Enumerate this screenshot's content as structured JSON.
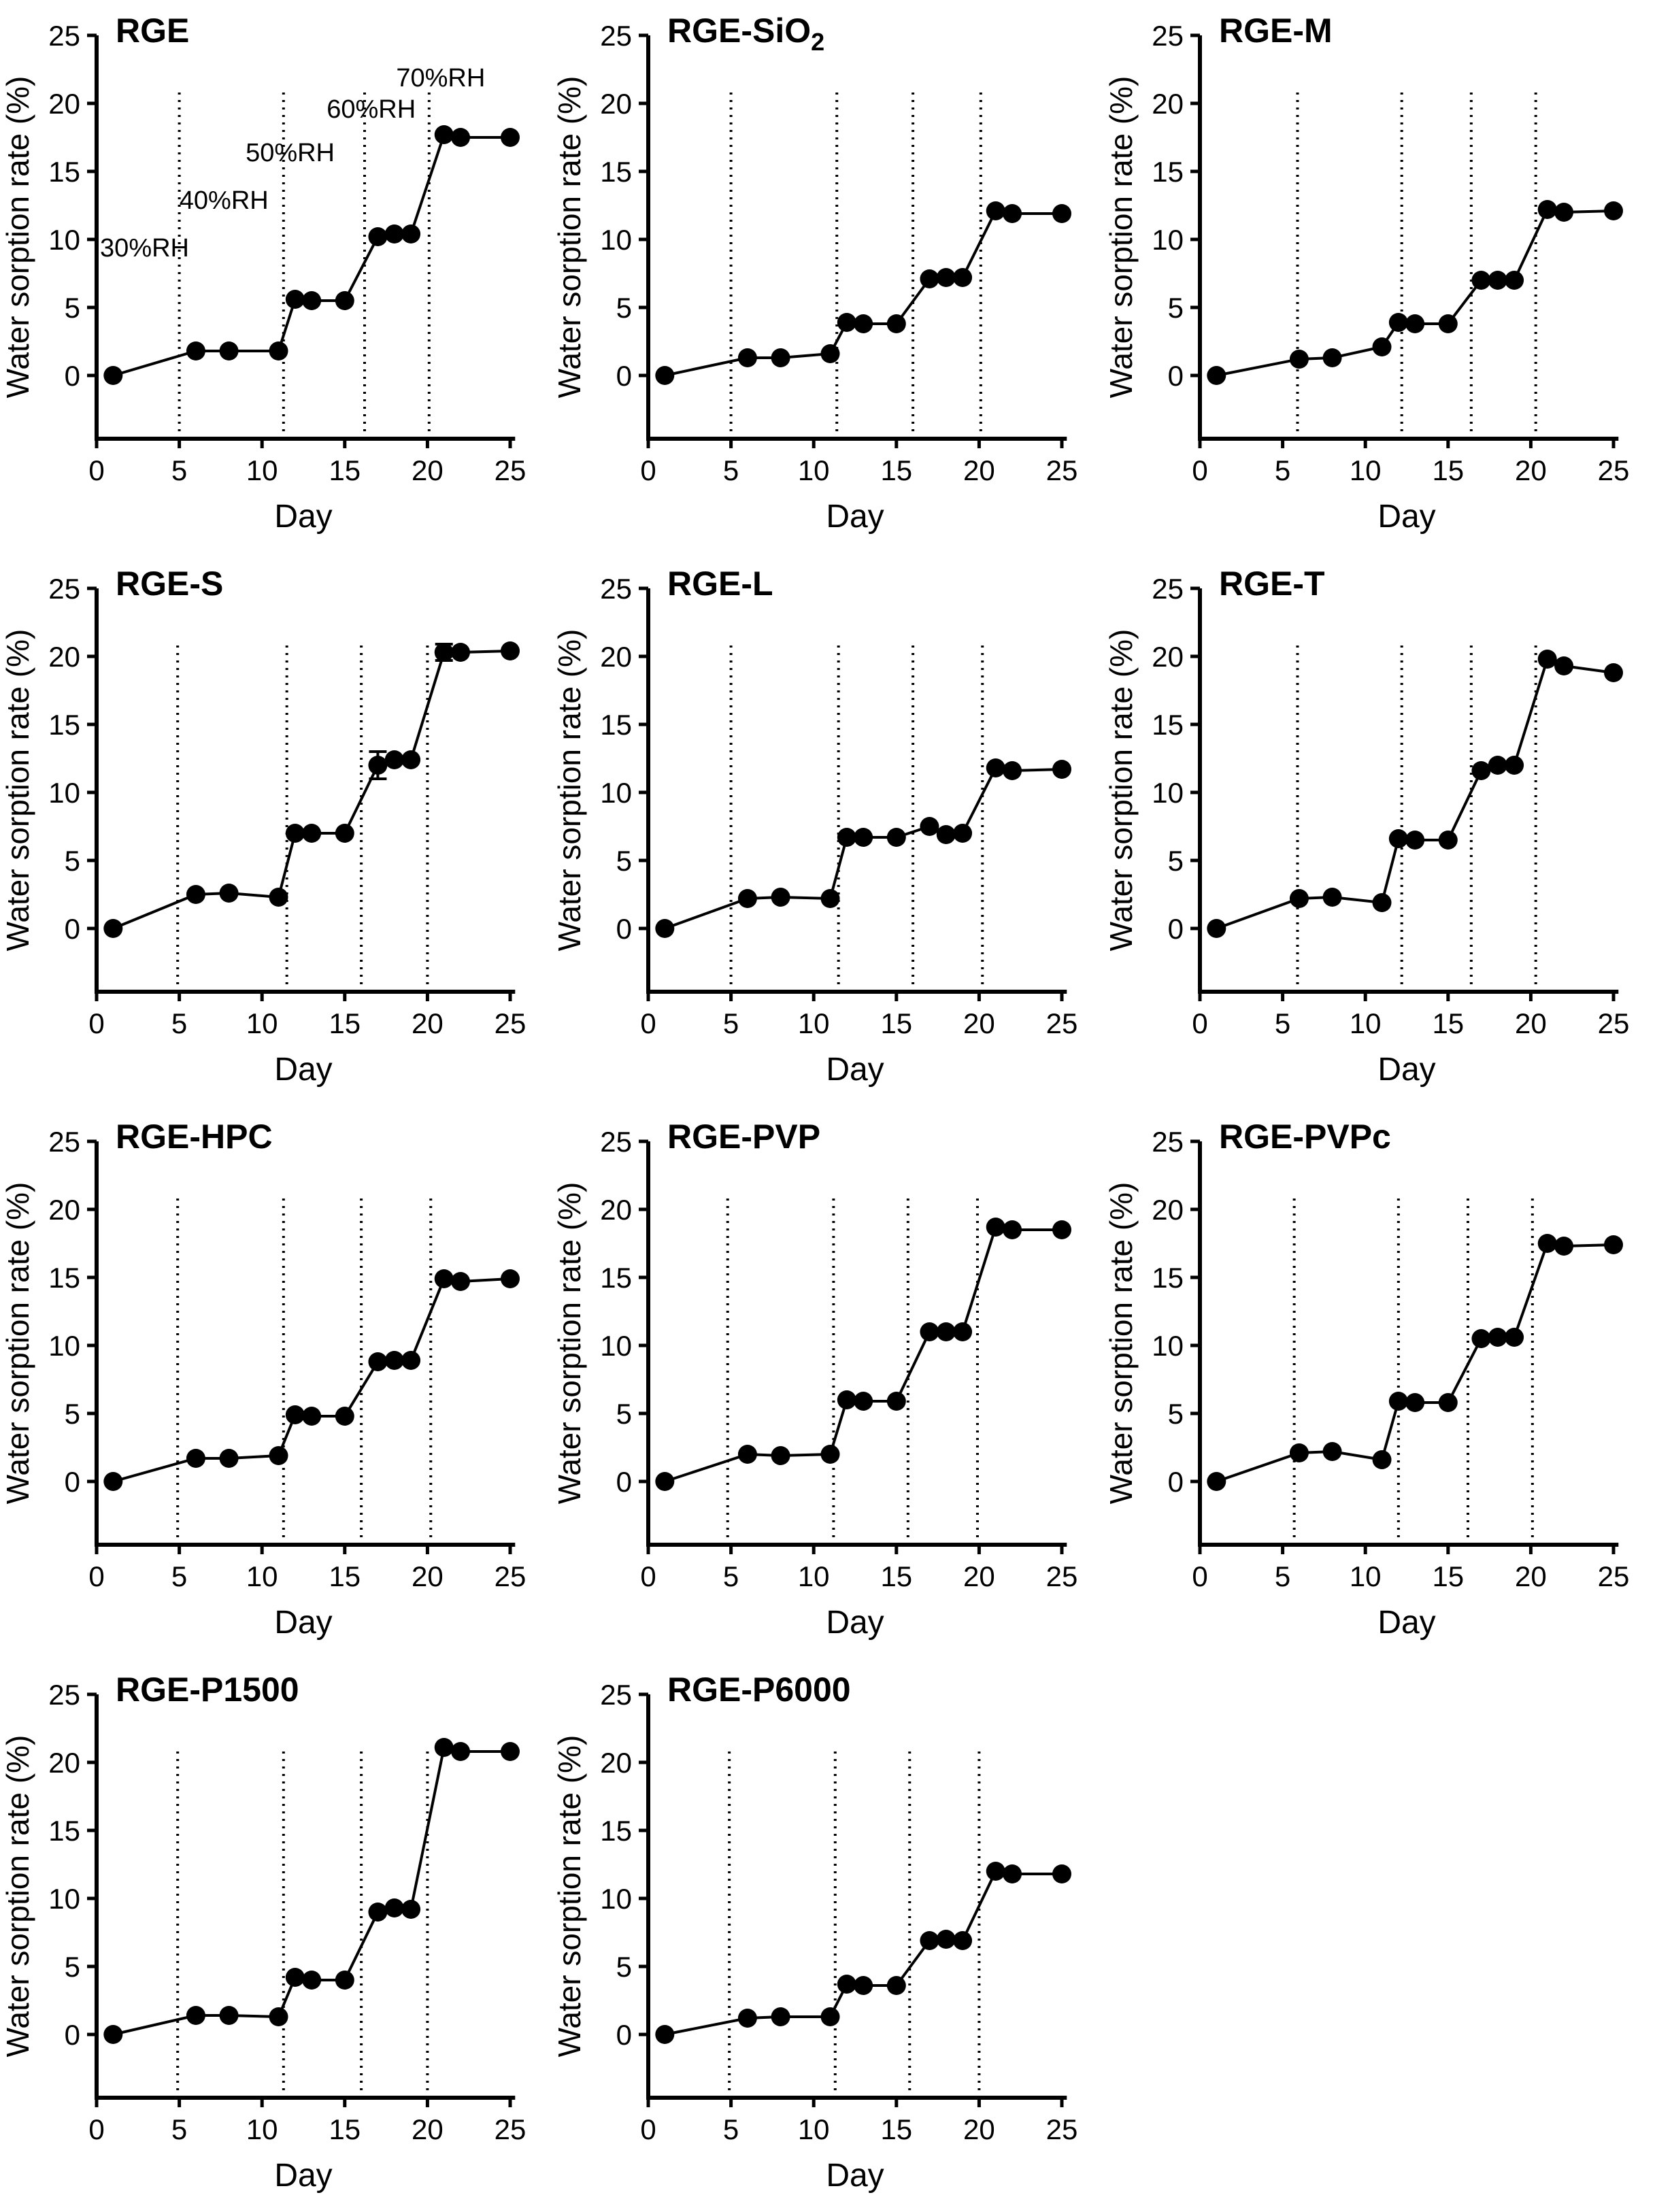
{
  "figure": {
    "background": "#ffffff",
    "ink_color": "#000000",
    "xlabel": "Day",
    "ylabel": "Water sorption rate (%)",
    "x_ticks": [
      0,
      5,
      10,
      15,
      20,
      25
    ],
    "y_ticks": [
      0,
      5,
      10,
      15,
      20,
      25
    ],
    "xlim": [
      0,
      25
    ],
    "ylim": [
      0,
      25
    ],
    "grid": "off",
    "legend": "none",
    "marker": "filled-circle",
    "rh_boundary_style": "vertical-dotted-line"
  },
  "chart_data": [
    {
      "type": "line",
      "title": "RGE",
      "title_sub": "",
      "xlabel": "Day",
      "ylabel": "Water sorption rate (%)",
      "x": [
        1,
        6,
        8,
        11,
        12,
        13,
        15,
        17,
        18,
        19,
        21,
        22,
        25
      ],
      "values": [
        0,
        1.8,
        1.8,
        1.8,
        5.6,
        5.5,
        5.5,
        10.2,
        10.4,
        10.4,
        17.7,
        17.5,
        17.5
      ],
      "rh_lines": [
        5.0,
        11.3,
        16.2,
        20.1
      ],
      "annotations": [
        {
          "text": "30%RH",
          "day": 2.9,
          "value": 9.4
        },
        {
          "text": "40%RH",
          "day": 7.7,
          "value": 12.9
        },
        {
          "text": "50%RH",
          "day": 11.7,
          "value": 16.4
        },
        {
          "text": "60%RH",
          "day": 16.6,
          "value": 19.6
        },
        {
          "text": "70%RH",
          "day": 20.8,
          "value": 21.9
        }
      ]
    },
    {
      "type": "line",
      "title": "RGE-SiO",
      "title_sub": "2",
      "xlabel": "Day",
      "ylabel": "Water sorption rate (%)",
      "x": [
        1,
        6,
        8,
        11,
        12,
        13,
        15,
        17,
        18,
        19,
        21,
        22,
        25
      ],
      "values": [
        0,
        1.3,
        1.3,
        1.6,
        3.9,
        3.8,
        3.8,
        7.1,
        7.2,
        7.2,
        12.1,
        11.9,
        11.9
      ],
      "rh_lines": [
        5.0,
        11.4,
        16.0,
        20.1
      ],
      "annotations": []
    },
    {
      "type": "line",
      "title": "RGE-M",
      "title_sub": "",
      "xlabel": "Day",
      "ylabel": "Water sorption rate (%)",
      "x": [
        1,
        6,
        8,
        11,
        12,
        13,
        15,
        17,
        18,
        19,
        21,
        22,
        25
      ],
      "values": [
        0,
        1.2,
        1.3,
        2.1,
        3.9,
        3.8,
        3.8,
        7.0,
        7.0,
        7.0,
        12.2,
        12.0,
        12.1
      ],
      "rh_lines": [
        5.9,
        12.2,
        16.4,
        20.3
      ],
      "annotations": []
    },
    {
      "type": "line",
      "title": "RGE-S",
      "title_sub": "",
      "xlabel": "Day",
      "ylabel": "Water sorption rate (%)",
      "x": [
        1,
        6,
        8,
        11,
        12,
        13,
        15,
        17,
        18,
        19,
        21,
        22,
        25
      ],
      "values": [
        0,
        2.5,
        2.6,
        2.3,
        7.0,
        7.0,
        7.0,
        12.0,
        12.4,
        12.4,
        20.3,
        20.3,
        20.4
      ],
      "errors": [
        0,
        0,
        0,
        0,
        0,
        0,
        0,
        1.0,
        0,
        0,
        0.6,
        0,
        0
      ],
      "rh_lines": [
        4.9,
        11.5,
        16.0,
        20.0
      ],
      "annotations": []
    },
    {
      "type": "line",
      "title": "RGE-L",
      "title_sub": "",
      "xlabel": "Day",
      "ylabel": "Water sorption rate (%)",
      "x": [
        1,
        6,
        8,
        11,
        12,
        13,
        15,
        17,
        18,
        19,
        21,
        22,
        25
      ],
      "values": [
        0,
        2.2,
        2.3,
        2.2,
        6.7,
        6.7,
        6.7,
        7.5,
        6.9,
        7.0,
        11.8,
        11.6,
        11.7
      ],
      "rh_lines": [
        5.0,
        11.5,
        16.0,
        20.2
      ],
      "annotations": []
    },
    {
      "type": "line",
      "title": "RGE-T",
      "title_sub": "",
      "xlabel": "Day",
      "ylabel": "Water sorption rate (%)",
      "x": [
        1,
        6,
        8,
        11,
        12,
        13,
        15,
        17,
        18,
        19,
        21,
        22,
        25
      ],
      "values": [
        0,
        2.2,
        2.3,
        1.9,
        6.6,
        6.5,
        6.5,
        11.6,
        12.0,
        12.0,
        19.8,
        19.3,
        18.8
      ],
      "rh_lines": [
        5.9,
        12.2,
        16.4,
        20.3
      ],
      "annotations": []
    },
    {
      "type": "line",
      "title": "RGE-HPC",
      "title_sub": "",
      "xlabel": "Day",
      "ylabel": "Water sorption rate (%)",
      "x": [
        1,
        6,
        8,
        11,
        12,
        13,
        15,
        17,
        18,
        19,
        21,
        22,
        25
      ],
      "values": [
        0,
        1.7,
        1.7,
        1.9,
        4.9,
        4.8,
        4.8,
        8.8,
        8.9,
        8.9,
        14.9,
        14.7,
        14.9
      ],
      "rh_lines": [
        4.9,
        11.3,
        16.0,
        20.2
      ],
      "annotations": []
    },
    {
      "type": "line",
      "title": "RGE-PVP",
      "title_sub": "",
      "xlabel": "Day",
      "ylabel": "Water sorption rate (%)",
      "x": [
        1,
        6,
        8,
        11,
        12,
        13,
        15,
        17,
        18,
        19,
        21,
        22,
        25
      ],
      "values": [
        0,
        2.0,
        1.9,
        2.0,
        6.0,
        5.9,
        5.9,
        11.0,
        11.0,
        11.0,
        18.7,
        18.5,
        18.5
      ],
      "rh_lines": [
        4.8,
        11.2,
        15.7,
        19.9
      ],
      "annotations": []
    },
    {
      "type": "line",
      "title": "RGE-PVPc",
      "title_sub": "",
      "xlabel": "Day",
      "ylabel": "Water sorption rate (%)",
      "x": [
        1,
        6,
        8,
        11,
        12,
        13,
        15,
        17,
        18,
        19,
        21,
        22,
        25
      ],
      "values": [
        0,
        2.1,
        2.2,
        1.6,
        5.9,
        5.8,
        5.8,
        10.5,
        10.6,
        10.6,
        17.5,
        17.3,
        17.4
      ],
      "rh_lines": [
        5.7,
        12.0,
        16.2,
        20.1
      ],
      "annotations": []
    },
    {
      "type": "line",
      "title": "RGE-P1500",
      "title_sub": "",
      "xlabel": "Day",
      "ylabel": "Water sorption rate (%)",
      "x": [
        1,
        6,
        8,
        11,
        12,
        13,
        15,
        17,
        18,
        19,
        21,
        22,
        25
      ],
      "values": [
        0,
        1.4,
        1.4,
        1.3,
        4.2,
        4.0,
        4.0,
        9.0,
        9.3,
        9.2,
        21.1,
        20.8,
        20.8
      ],
      "rh_lines": [
        4.9,
        11.3,
        16.0,
        20.0
      ],
      "annotations": []
    },
    {
      "type": "line",
      "title": "RGE-P6000",
      "title_sub": "",
      "xlabel": "Day",
      "ylabel": "Water sorption rate (%)",
      "x": [
        1,
        6,
        8,
        11,
        12,
        13,
        15,
        17,
        18,
        19,
        21,
        22,
        25
      ],
      "values": [
        0,
        1.2,
        1.3,
        1.3,
        3.7,
        3.6,
        3.6,
        6.9,
        7.0,
        6.9,
        12.0,
        11.8,
        11.8
      ],
      "rh_lines": [
        4.9,
        11.3,
        15.8,
        20.0
      ],
      "annotations": []
    }
  ]
}
